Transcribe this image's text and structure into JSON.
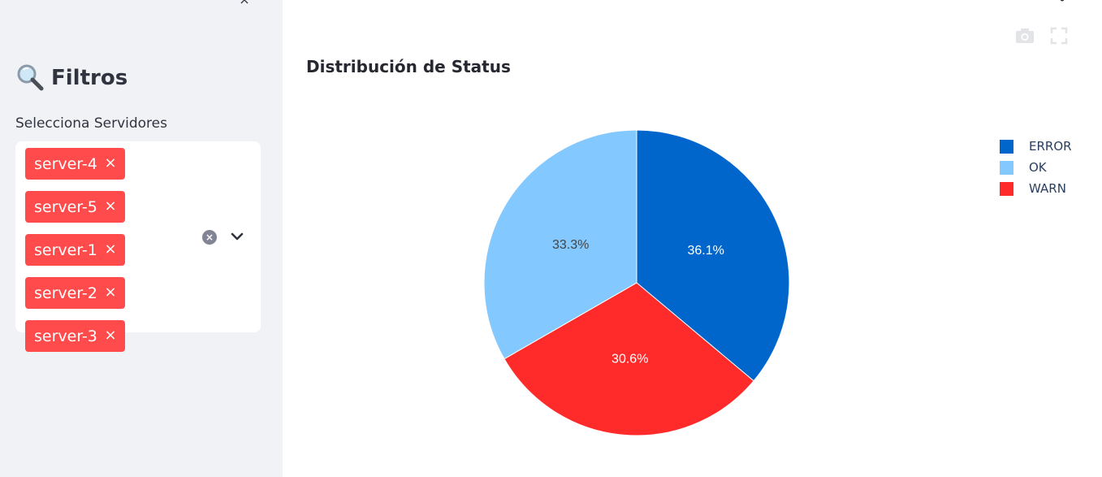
{
  "sidebar": {
    "close_glyph": "×",
    "title_icon": "magnifying-glass-icon",
    "title": "Filtros",
    "multiselect_label": "Selecciona Servidores",
    "selected": [
      {
        "label": "server-4",
        "remove": "×"
      },
      {
        "label": "server-5",
        "remove": "×"
      },
      {
        "label": "server-1",
        "remove": "×"
      },
      {
        "label": "server-2",
        "remove": "×"
      },
      {
        "label": "server-3",
        "remove": "×"
      }
    ],
    "clear_glyph": "×",
    "tag_color": "#ff4b4b"
  },
  "main": {
    "chart_title": "Distribución de Status"
  },
  "chart_data": {
    "type": "pie",
    "title": "Distribución de Status",
    "slices": [
      {
        "label": "ERROR",
        "value": 36.1,
        "text": "36.1%",
        "color": "#0066cc",
        "text_color": "#ffffff"
      },
      {
        "label": "WARN",
        "value": 30.6,
        "text": "30.6%",
        "color": "#ff2b2b",
        "text_color": "#ffffff"
      },
      {
        "label": "OK",
        "value": 33.3,
        "text": "33.3%",
        "color": "#83c9ff",
        "text_color": "#444444"
      }
    ],
    "legend": [
      "ERROR",
      "OK",
      "WARN"
    ],
    "legend_placement": "top-right"
  }
}
